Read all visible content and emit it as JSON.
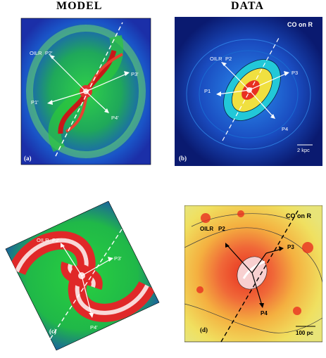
{
  "headers": {
    "left": "MODEL",
    "right": "DATA"
  },
  "panel_a": {
    "letter": "(a)",
    "labels": {
      "oilr": "OILR",
      "p2": "P2'",
      "p3": "P3'",
      "p1": "P1'",
      "p4": "P4'"
    }
  },
  "panel_b": {
    "letter": "(b)",
    "title": "CO on R",
    "scale": "2 kpc",
    "labels": {
      "oilr": "OILR",
      "p2": "P2",
      "p3": "P3",
      "p1": "P1",
      "p4": "P4"
    }
  },
  "panel_c": {
    "letter": "(c)",
    "labels": {
      "oilr": "OILR",
      "p2": "P2'",
      "p3": "P3'",
      "p4": "P4'"
    }
  },
  "panel_d": {
    "letter": "(d)",
    "title": "CO on R",
    "scale": "100 pc",
    "labels": {
      "oilr": "OILR",
      "p2": "P2",
      "p3": "P3",
      "p4": "P4"
    }
  }
}
